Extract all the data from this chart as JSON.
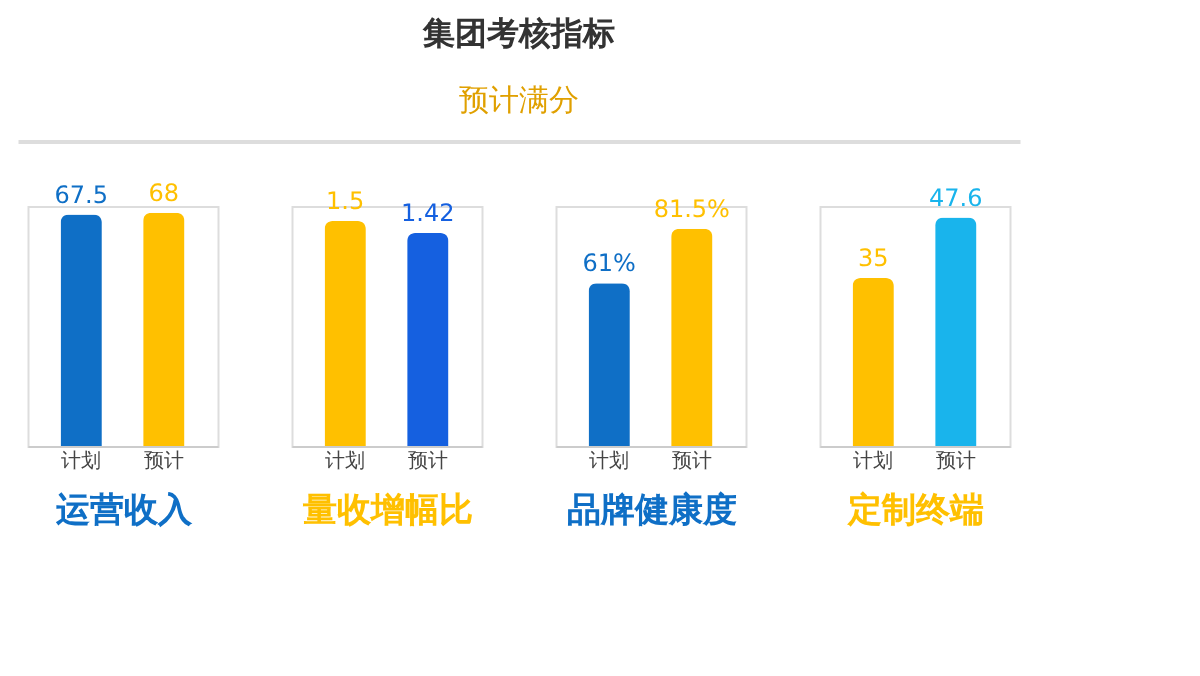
{
  "chart_data": [
    {
      "type": "other",
      "title": "集团考核指标",
      "subtitle": "预计满分"
    },
    {
      "type": "bar",
      "categories": [
        "计划",
        "预计"
      ],
      "values": [
        67.5,
        68
      ],
      "colors": [
        "#0f6fc6",
        "#ffc000"
      ],
      "data_labels": true,
      "xlabel": "运营收入",
      "tick_labels": "x"
    },
    {
      "type": "bar",
      "categories": [
        "计划",
        "预计"
      ],
      "values": [
        1.5,
        1.42
      ],
      "colors": [
        "#ffc000",
        "#1560e0"
      ],
      "data_labels": true,
      "xlabel": "量收增幅比",
      "tick_labels": "x"
    },
    {
      "type": "bar",
      "categories": [
        "计划",
        "预计"
      ],
      "values": [
        61,
        81.5
      ],
      "colors": [
        "#0f6fc6",
        "#ffc000"
      ],
      "value_labels": [
        "61%",
        "81.5%"
      ],
      "xlabel": "品牌健康度",
      "tick_labels": "x"
    },
    {
      "type": "bar",
      "categories": [
        "计划",
        "预计"
      ],
      "values": [
        35,
        47.6
      ],
      "colors": [
        "#ffc000",
        "#19b4ec"
      ],
      "data_labels": true,
      "xlabel": "定制终端",
      "tick_labels": "x"
    }
  ]
}
